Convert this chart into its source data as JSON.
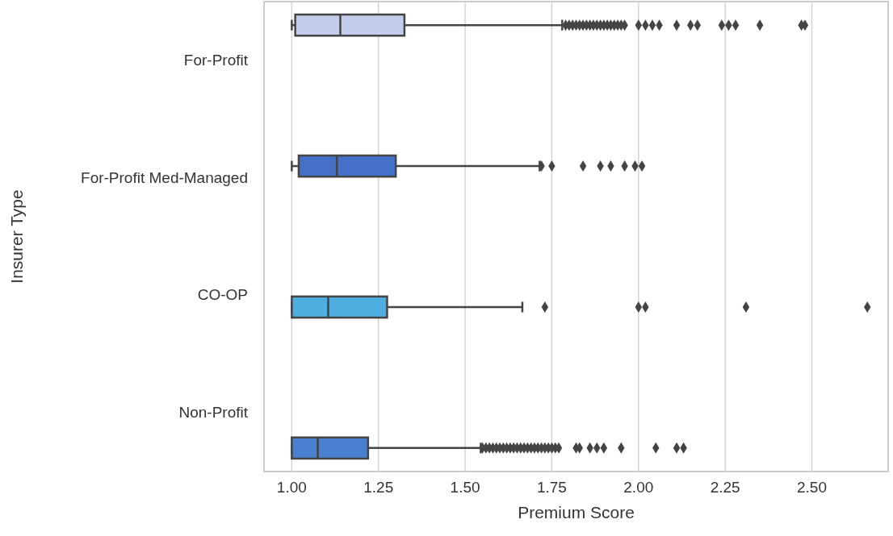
{
  "chart_data": {
    "type": "box",
    "orientation": "horizontal",
    "xlabel": "Premium Score",
    "ylabel": "Insurer Type",
    "categories": [
      "For-Profit",
      "For-Profit Med-Managed",
      "CO-OP",
      "Non-Profit"
    ],
    "xlim": [
      0.92,
      2.72
    ],
    "xticks": [
      {
        "value": 1,
        "label": "1.00"
      },
      {
        "value": 1.25,
        "label": "1.25"
      },
      {
        "value": 1.5,
        "label": "1.50"
      },
      {
        "value": 1.75,
        "label": "1.75"
      },
      {
        "value": 2,
        "label": "2.00"
      },
      {
        "value": 2.25,
        "label": "2.25"
      },
      {
        "value": 2.5,
        "label": "2.50"
      }
    ],
    "grid": "x",
    "marker": "diamond",
    "series": [
      {
        "color": "#c2cdeb",
        "boxes": [
          {
            "low": 1.0,
            "q1": 1.01,
            "median": 1.14,
            "q3": 1.325,
            "high": 1.78,
            "outliers": [
              1.79,
              1.8,
              1.81,
              1.82,
              1.83,
              1.84,
              1.85,
              1.86,
              1.87,
              1.88,
              1.89,
              1.9,
              1.91,
              1.92,
              1.93,
              1.94,
              1.95,
              1.96,
              2.0,
              2.02,
              2.04,
              2.06,
              2.11,
              2.15,
              2.17,
              2.24,
              2.26,
              2.28,
              2.35,
              2.47,
              2.48
            ]
          },
          null,
          null,
          null
        ]
      },
      {
        "color": "#4470c8",
        "boxes": [
          null,
          {
            "low": 1.0,
            "q1": 1.02,
            "median": 1.13,
            "q3": 1.3,
            "high": 1.715,
            "outliers": [
              1.72,
              1.75,
              1.84,
              1.89,
              1.92,
              1.96,
              1.99,
              2.01
            ]
          },
          null,
          null
        ]
      },
      {
        "color": "#4eaedf",
        "boxes": [
          null,
          null,
          {
            "low": 1.0,
            "q1": 1.0,
            "median": 1.105,
            "q3": 1.275,
            "high": 1.665,
            "outliers": [
              1.73,
              2.0,
              2.02,
              2.31,
              2.66
            ]
          },
          null
        ]
      },
      {
        "color": "#4a80d0",
        "boxes": [
          null,
          null,
          null,
          {
            "low": 1.0,
            "q1": 1.0,
            "median": 1.075,
            "q3": 1.22,
            "high": 1.545,
            "outliers": [
              1.55,
              1.56,
              1.57,
              1.58,
              1.59,
              1.6,
              1.61,
              1.62,
              1.63,
              1.64,
              1.65,
              1.66,
              1.67,
              1.68,
              1.69,
              1.7,
              1.71,
              1.72,
              1.73,
              1.74,
              1.75,
              1.76,
              1.77,
              1.82,
              1.83,
              1.86,
              1.88,
              1.9,
              1.95,
              2.05,
              2.11,
              2.13
            ]
          }
        ]
      }
    ]
  }
}
